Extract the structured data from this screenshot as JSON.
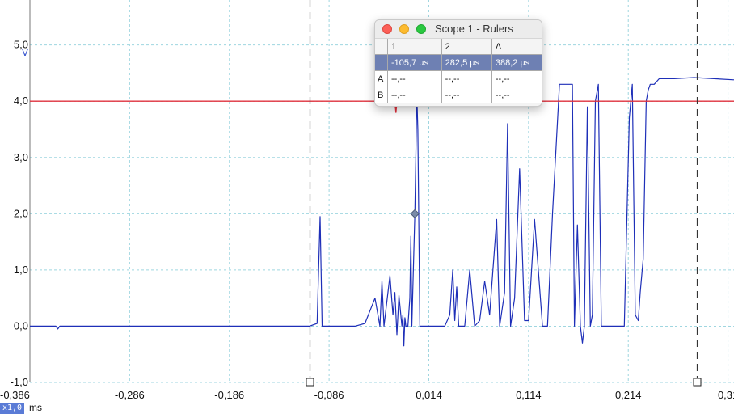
{
  "window": {
    "title": "Scope 1 - Rulers"
  },
  "rulers": {
    "columns": [
      "",
      "1",
      "2",
      "Δ"
    ],
    "rows": [
      {
        "label": "",
        "values": [
          "-105,7 µs",
          "282,5 µs",
          "388,2 µs"
        ],
        "selected": true
      },
      {
        "label": "A",
        "values": [
          "--,--",
          "--,--",
          "--,--"
        ],
        "selected": false
      },
      {
        "label": "B",
        "values": [
          "--,--",
          "--,--",
          "--,--"
        ],
        "selected": false
      }
    ]
  },
  "statusbar": {
    "zoom": "x1,0",
    "x_unit": "ms"
  },
  "colors": {
    "channel_a": "#1e2fb8",
    "channel_b": "#e0303c",
    "grid": "#9fd6e0",
    "cursor": "#333333"
  },
  "chart_data": {
    "type": "line",
    "ylabel": "V",
    "xlabel": "ms",
    "xlim": [
      -0.386,
      0.32
    ],
    "ylim": [
      -1.0,
      5.8
    ],
    "x_ticks": [
      -0.386,
      -0.286,
      -0.186,
      -0.086,
      0.014,
      0.114,
      0.214,
      0.314
    ],
    "x_tick_labels": [
      "-0,386",
      "-0,286",
      "-0,186",
      "-0,086",
      "0,014",
      "0,114",
      "0,214",
      "0,31"
    ],
    "y_ticks": [
      -1,
      0,
      1,
      2,
      3,
      4,
      5
    ],
    "y_tick_labels": [
      "-1,0",
      "0,0",
      "1,0",
      "2,0",
      "3,0",
      "4,0",
      "5,0"
    ],
    "grid": true,
    "cursors": [
      {
        "name": "1",
        "x": -0.1057
      },
      {
        "name": "2",
        "x": 0.2825
      }
    ],
    "trigger": {
      "x": 0.0,
      "y": 2.0
    },
    "series": [
      {
        "channel": "A",
        "color": "#1e2fb8",
        "x": [
          -0.386,
          -0.36,
          -0.358,
          -0.356,
          -0.1057,
          -0.098,
          -0.095,
          -0.093,
          -0.09,
          -0.086,
          -0.06,
          -0.05,
          -0.04,
          -0.035,
          -0.033,
          -0.031,
          -0.025,
          -0.022,
          -0.02,
          -0.018,
          -0.016,
          -0.013,
          -0.012,
          -0.011,
          -0.01,
          -0.009,
          -0.007,
          -0.005,
          -0.004,
          -0.003,
          0.0,
          0.002,
          0.003,
          0.005,
          0.007,
          0.01,
          0.03,
          0.035,
          0.038,
          0.04,
          0.042,
          0.044,
          0.05,
          0.055,
          0.06,
          0.065,
          0.07,
          0.075,
          0.082,
          0.085,
          0.09,
          0.093,
          0.096,
          0.1,
          0.105,
          0.11,
          0.114,
          0.12,
          0.128,
          0.133,
          0.138,
          0.145,
          0.15,
          0.158,
          0.16,
          0.163,
          0.166,
          0.168,
          0.17,
          0.173,
          0.176,
          0.178,
          0.181,
          0.184,
          0.187,
          0.192,
          0.21,
          0.215,
          0.218,
          0.221,
          0.224,
          0.226,
          0.229,
          0.232,
          0.234,
          0.236,
          0.24,
          0.245,
          0.25,
          0.26,
          0.28,
          0.3,
          0.32
        ],
        "y": [
          0.0,
          0.0,
          -0.05,
          0.0,
          0.0,
          0.05,
          1.95,
          0.0,
          0.0,
          0.0,
          0.0,
          0.05,
          0.5,
          0.0,
          0.8,
          0.0,
          0.9,
          0.2,
          0.6,
          -0.15,
          0.55,
          0.0,
          0.2,
          -0.35,
          0.15,
          0.0,
          0.0,
          0.5,
          1.6,
          0.0,
          2.0,
          4.1,
          3.5,
          0.0,
          0.0,
          0.0,
          0.0,
          0.2,
          1.0,
          0.1,
          0.7,
          0.0,
          0.0,
          1.0,
          0.0,
          0.1,
          0.8,
          0.2,
          1.9,
          0.0,
          0.6,
          3.6,
          0.0,
          0.5,
          2.8,
          0.1,
          0.1,
          1.9,
          0.0,
          0.0,
          2.0,
          4.3,
          4.3,
          4.3,
          0.0,
          1.8,
          0.0,
          -0.3,
          0.0,
          3.9,
          0.0,
          0.2,
          4.0,
          4.3,
          0.0,
          0.0,
          0.0,
          3.7,
          4.3,
          0.2,
          0.1,
          0.6,
          1.2,
          4.0,
          4.2,
          4.3,
          4.3,
          4.4,
          4.4,
          4.4,
          4.42,
          4.4,
          4.38
        ]
      },
      {
        "channel": "B",
        "color": "#e0303c",
        "x": [
          -0.386,
          -0.035,
          -0.034,
          -0.02,
          -0.019,
          -0.018,
          0.04,
          0.041,
          0.042,
          0.25,
          0.32
        ],
        "y": [
          4.0,
          4.0,
          4.05,
          4.0,
          3.8,
          4.0,
          4.0,
          4.15,
          4.0,
          4.0,
          4.0
        ]
      }
    ]
  }
}
